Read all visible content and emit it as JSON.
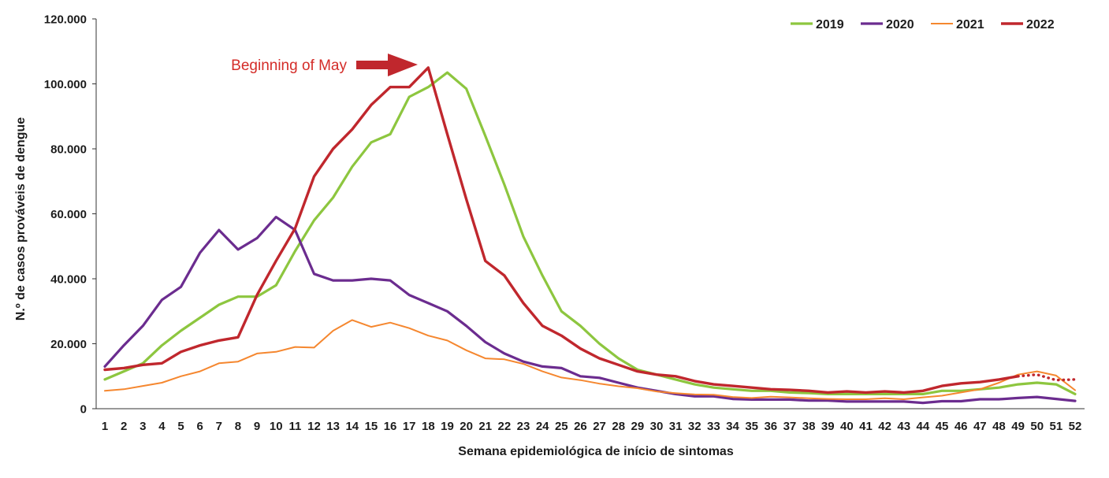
{
  "chart_data": {
    "type": "line",
    "xlabel": "Semana epidemiológica de início de sintomas",
    "ylabel": "N.º de casos prováveis de dengue",
    "x": [
      1,
      2,
      3,
      4,
      5,
      6,
      7,
      8,
      9,
      10,
      11,
      12,
      13,
      14,
      15,
      16,
      17,
      18,
      19,
      20,
      21,
      22,
      23,
      24,
      25,
      26,
      27,
      28,
      29,
      30,
      31,
      32,
      33,
      34,
      35,
      36,
      37,
      38,
      39,
      40,
      41,
      42,
      43,
      44,
      45,
      46,
      47,
      48,
      49,
      50,
      51,
      52
    ],
    "ylim": [
      0,
      120000
    ],
    "yticks": [
      0,
      20000,
      40000,
      60000,
      80000,
      100000,
      120000
    ],
    "ytick_labels": [
      "0",
      "20.000",
      "40.000",
      "60.000",
      "80.000",
      "100.000",
      "120.000"
    ],
    "grid": false,
    "legend_position": "top-right",
    "series": [
      {
        "name": "2019",
        "color": "#8dc63f",
        "values": [
          9000,
          11500,
          14000,
          19500,
          24000,
          28000,
          32000,
          34500,
          34500,
          38000,
          48500,
          58000,
          65000,
          74500,
          82000,
          84500,
          96000,
          99000,
          103500,
          98500,
          84000,
          69000,
          53000,
          41000,
          30000,
          25500,
          20000,
          15500,
          12000,
          10500,
          9000,
          7500,
          6500,
          6000,
          5500,
          5500,
          5000,
          4800,
          4500,
          4500,
          4500,
          4500,
          4500,
          4500,
          5500,
          5500,
          6000,
          6500,
          7500,
          8000,
          7500,
          4500
        ]
      },
      {
        "name": "2020",
        "color": "#6b2c8f",
        "values": [
          13000,
          19500,
          25500,
          33500,
          37500,
          48000,
          55000,
          49000,
          52500,
          59000,
          55000,
          41500,
          39500,
          39500,
          40000,
          39500,
          35000,
          32500,
          30000,
          25500,
          20500,
          17000,
          14500,
          13000,
          12500,
          10000,
          9500,
          8000,
          6500,
          5500,
          4500,
          3800,
          3800,
          3000,
          2800,
          2800,
          2800,
          2500,
          2500,
          2200,
          2200,
          2200,
          2200,
          1800,
          2300,
          2300,
          2900,
          2900,
          3300,
          3600,
          3000,
          2400
        ]
      },
      {
        "name": "2021",
        "color": "#f5872f",
        "values": [
          5500,
          6000,
          7000,
          8000,
          10000,
          11500,
          14000,
          14500,
          17000,
          17500,
          19000,
          18800,
          24000,
          27300,
          25200,
          26500,
          24800,
          22500,
          21000,
          18000,
          15500,
          15200,
          13800,
          11500,
          9600,
          8800,
          7700,
          6900,
          6300,
          5300,
          4800,
          4400,
          4300,
          3600,
          3300,
          3700,
          3500,
          3200,
          3000,
          2900,
          2900,
          3200,
          2900,
          3500,
          4000,
          5000,
          6000,
          8000,
          10500,
          11500,
          10200,
          5700
        ]
      },
      {
        "name": "2022",
        "color": "#c0272d",
        "dotted_from_week": 49,
        "values": [
          12000,
          12500,
          13500,
          14000,
          17500,
          19500,
          21000,
          22000,
          35000,
          45500,
          55500,
          71500,
          80000,
          86000,
          93500,
          99000,
          99000,
          105000,
          84500,
          64500,
          45500,
          41000,
          32500,
          25500,
          22500,
          18500,
          15500,
          13500,
          11500,
          10500,
          10000,
          8500,
          7500,
          7000,
          6500,
          6000,
          5800,
          5500,
          5000,
          5300,
          5000,
          5300,
          5000,
          5500,
          7000,
          7800,
          8200,
          9000,
          10000,
          10500,
          8800,
          9000
        ]
      }
    ],
    "annotations": [
      {
        "text": "Beginning of May",
        "color": "#d42c28",
        "arrow_color": "#c0272d"
      }
    ]
  }
}
